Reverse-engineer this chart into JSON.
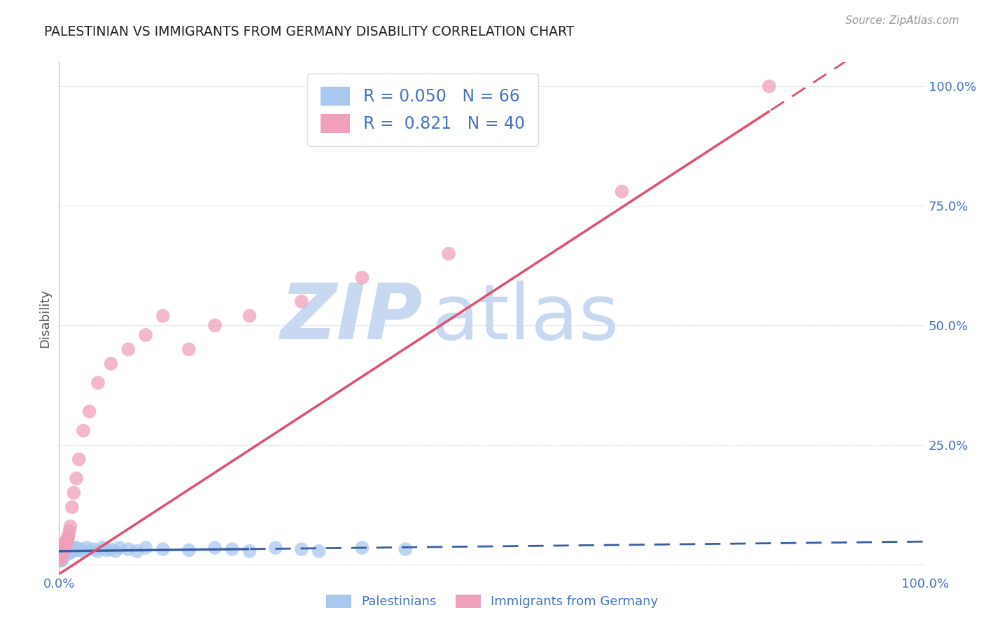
{
  "title": "PALESTINIAN VS IMMIGRANTS FROM GERMANY DISABILITY CORRELATION CHART",
  "source": "Source: ZipAtlas.com",
  "ylabel": "Disability",
  "legend_blue_r": "0.050",
  "legend_blue_n": "66",
  "legend_pink_r": "0.821",
  "legend_pink_n": "40",
  "legend_blue_label": "Palestinians",
  "legend_pink_label": "Immigrants from Germany",
  "blue_color": "#a8c8f0",
  "blue_line_color": "#3a5fa0",
  "pink_color": "#f0a0b8",
  "pink_line_color": "#e05070",
  "watermark_zip_color": "#c8d8f0",
  "watermark_atlas_color": "#c8d8f0",
  "grid_color": "#dddddd",
  "title_color": "#222222",
  "axis_label_color": "#555555",
  "tick_label_color": "#4472c4",
  "blue_x": [
    0.001,
    0.001,
    0.001,
    0.002,
    0.002,
    0.002,
    0.002,
    0.003,
    0.003,
    0.003,
    0.003,
    0.003,
    0.004,
    0.004,
    0.004,
    0.005,
    0.005,
    0.005,
    0.006,
    0.006,
    0.006,
    0.007,
    0.007,
    0.007,
    0.008,
    0.008,
    0.009,
    0.009,
    0.01,
    0.01,
    0.011,
    0.011,
    0.012,
    0.013,
    0.013,
    0.014,
    0.015,
    0.016,
    0.017,
    0.018,
    0.019,
    0.02,
    0.022,
    0.025,
    0.028,
    0.032,
    0.04,
    0.045,
    0.05,
    0.055,
    0.06,
    0.065,
    0.07,
    0.08,
    0.09,
    0.1,
    0.12,
    0.15,
    0.18,
    0.2,
    0.22,
    0.25,
    0.28,
    0.3,
    0.35,
    0.4
  ],
  "blue_y": [
    0.01,
    0.015,
    0.008,
    0.012,
    0.018,
    0.022,
    0.01,
    0.015,
    0.02,
    0.025,
    0.012,
    0.008,
    0.018,
    0.022,
    0.015,
    0.02,
    0.025,
    0.015,
    0.022,
    0.028,
    0.018,
    0.025,
    0.03,
    0.02,
    0.028,
    0.022,
    0.025,
    0.03,
    0.022,
    0.028,
    0.025,
    0.032,
    0.028,
    0.025,
    0.035,
    0.03,
    0.032,
    0.028,
    0.035,
    0.03,
    0.032,
    0.035,
    0.03,
    0.032,
    0.028,
    0.035,
    0.032,
    0.028,
    0.035,
    0.03,
    0.032,
    0.028,
    0.035,
    0.032,
    0.028,
    0.035,
    0.032,
    0.03,
    0.035,
    0.032,
    0.028,
    0.035,
    0.032,
    0.028,
    0.035,
    0.032
  ],
  "pink_x": [
    0.001,
    0.002,
    0.002,
    0.003,
    0.003,
    0.003,
    0.004,
    0.004,
    0.005,
    0.005,
    0.006,
    0.006,
    0.007,
    0.007,
    0.008,
    0.008,
    0.009,
    0.01,
    0.011,
    0.012,
    0.013,
    0.015,
    0.017,
    0.02,
    0.023,
    0.028,
    0.035,
    0.045,
    0.06,
    0.08,
    0.1,
    0.12,
    0.15,
    0.18,
    0.22,
    0.28,
    0.35,
    0.45,
    0.65,
    0.82
  ],
  "pink_y": [
    0.01,
    0.015,
    0.02,
    0.018,
    0.025,
    0.03,
    0.025,
    0.032,
    0.028,
    0.035,
    0.032,
    0.04,
    0.038,
    0.045,
    0.04,
    0.05,
    0.048,
    0.055,
    0.06,
    0.07,
    0.08,
    0.12,
    0.15,
    0.18,
    0.22,
    0.28,
    0.32,
    0.38,
    0.42,
    0.45,
    0.48,
    0.52,
    0.45,
    0.5,
    0.52,
    0.55,
    0.6,
    0.65,
    0.78,
    1.0
  ],
  "xlim": [
    0.0,
    1.0
  ],
  "ylim": [
    -0.02,
    1.05
  ],
  "blue_line_x_solid_end": 0.22,
  "pink_line_x_solid_end": 0.82,
  "blue_trend_slope": 0.02,
  "blue_trend_intercept": 0.028,
  "pink_trend_slope": 1.18,
  "pink_trend_intercept": -0.02
}
